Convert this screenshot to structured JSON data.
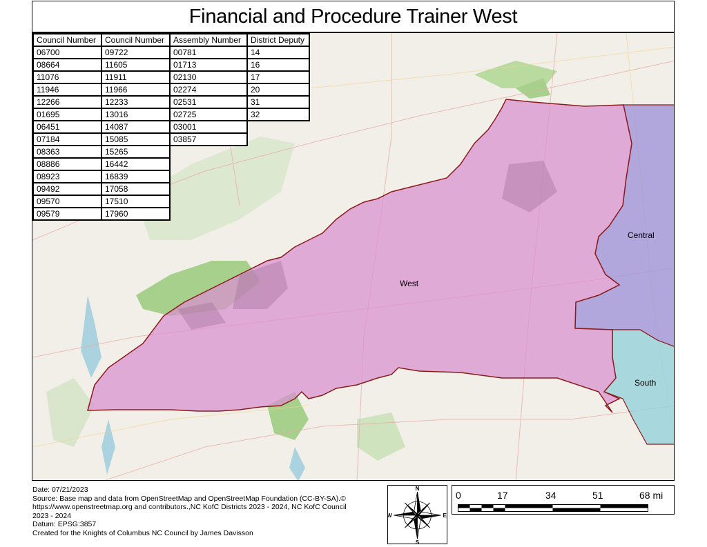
{
  "title": "Financial and Procedure Trainer West",
  "tables": {
    "council1": {
      "header": "Council Number",
      "rows": [
        "06700",
        "08664",
        "11076",
        "11946",
        "12266",
        "01695",
        "06451",
        "07184",
        "08363",
        "08886",
        "08923",
        "09492",
        "09570",
        "09579"
      ]
    },
    "council2": {
      "header": "Council Number",
      "rows": [
        "09722",
        "11605",
        "11911",
        "11966",
        "12233",
        "13016",
        "14087",
        "15085",
        "15265",
        "16442",
        "16839",
        "17058",
        "17510",
        "17960"
      ]
    },
    "assembly": {
      "header": "Assembly Number",
      "rows": [
        "00781",
        "01713",
        "02130",
        "02274",
        "02531",
        "02725",
        "03001",
        "03857"
      ]
    },
    "district": {
      "header": "District Deputy",
      "rows": [
        "14",
        "16",
        "17",
        "20",
        "31",
        "32"
      ]
    }
  },
  "map": {
    "regions": {
      "west": "West",
      "central": "Central",
      "south": "South"
    },
    "colors": {
      "west_fill": "#d88fd0",
      "central_fill": "#9b8fd8",
      "south_fill": "#8fd0d8",
      "border": "#8b1a1a",
      "base": "#f2efe9",
      "forest": "#a8d08d"
    }
  },
  "footer": {
    "date": "Date: 07/21/2023",
    "source1": "Source: Base map and data from OpenStreetMap and OpenStreetMap Foundation (CC-BY-SA).©",
    "source2": "https://www.openstreetmap.org and contributors.,NC KofC Districts 2023 - 2024, NC KofC Council",
    "source3": "2023 - 2024",
    "datum": "Datum: EPSG:3857",
    "credit": "Created for the Knights of Columbus NC Council by James Davisson"
  },
  "compass": {
    "n": "N",
    "s": "S",
    "e": "E",
    "w": "W"
  },
  "scale": {
    "labels": [
      "0",
      "17",
      "34",
      "51",
      "68 mi"
    ]
  }
}
